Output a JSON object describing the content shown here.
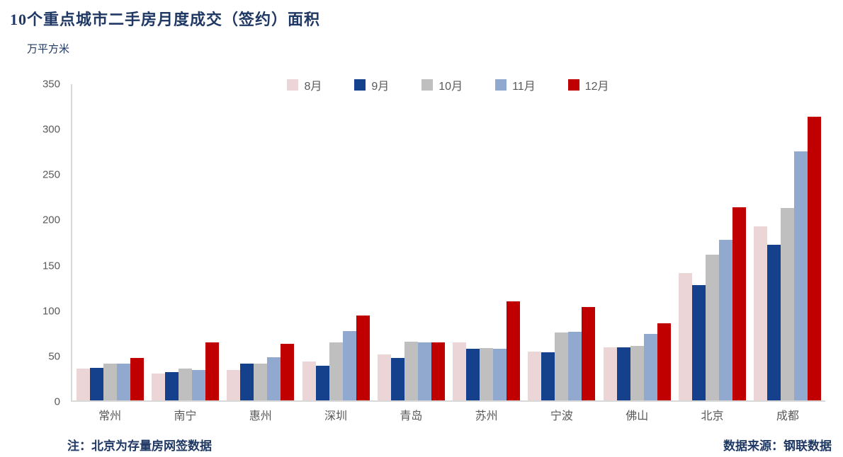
{
  "title": "10个重点城市二手房月度成交（签约）面积",
  "y_unit": "万平方米",
  "note_left": "注：北京为存量房网签数据",
  "source_right": "数据来源：钢联数据",
  "colors": {
    "title_text": "#1F3864",
    "axis_text": "#595959",
    "axis_line": "#D9D9D9"
  },
  "chart_data": {
    "type": "bar",
    "title": "10个重点城市二手房月度成交（签约）面积",
    "xlabel": "",
    "ylabel": "万平方米",
    "ylim": [
      0,
      350
    ],
    "ytick_step": 50,
    "grid": false,
    "legend_position": "top-center",
    "categories": [
      "常州",
      "南宁",
      "惠州",
      "深圳",
      "青岛",
      "苏州",
      "宁波",
      "佛山",
      "北京",
      "成都"
    ],
    "series": [
      {
        "name": "8月",
        "color": "#ECD5D6",
        "values": [
          35,
          30,
          34,
          43,
          51,
          64,
          54,
          59,
          141,
          193
        ]
      },
      {
        "name": "9月",
        "color": "#15418C",
        "values": [
          36,
          31,
          41,
          38,
          47,
          57,
          53,
          59,
          128,
          172
        ]
      },
      {
        "name": "10月",
        "color": "#BFBFBF",
        "values": [
          41,
          35,
          41,
          64,
          65,
          58,
          75,
          60,
          161,
          213
        ]
      },
      {
        "name": "11月",
        "color": "#92A9CF",
        "values": [
          41,
          34,
          48,
          77,
          64,
          57,
          76,
          74,
          178,
          276
        ]
      },
      {
        "name": "12月",
        "color": "#C00000",
        "values": [
          47,
          64,
          63,
          94,
          64,
          110,
          103,
          85,
          214,
          314
        ]
      }
    ]
  }
}
